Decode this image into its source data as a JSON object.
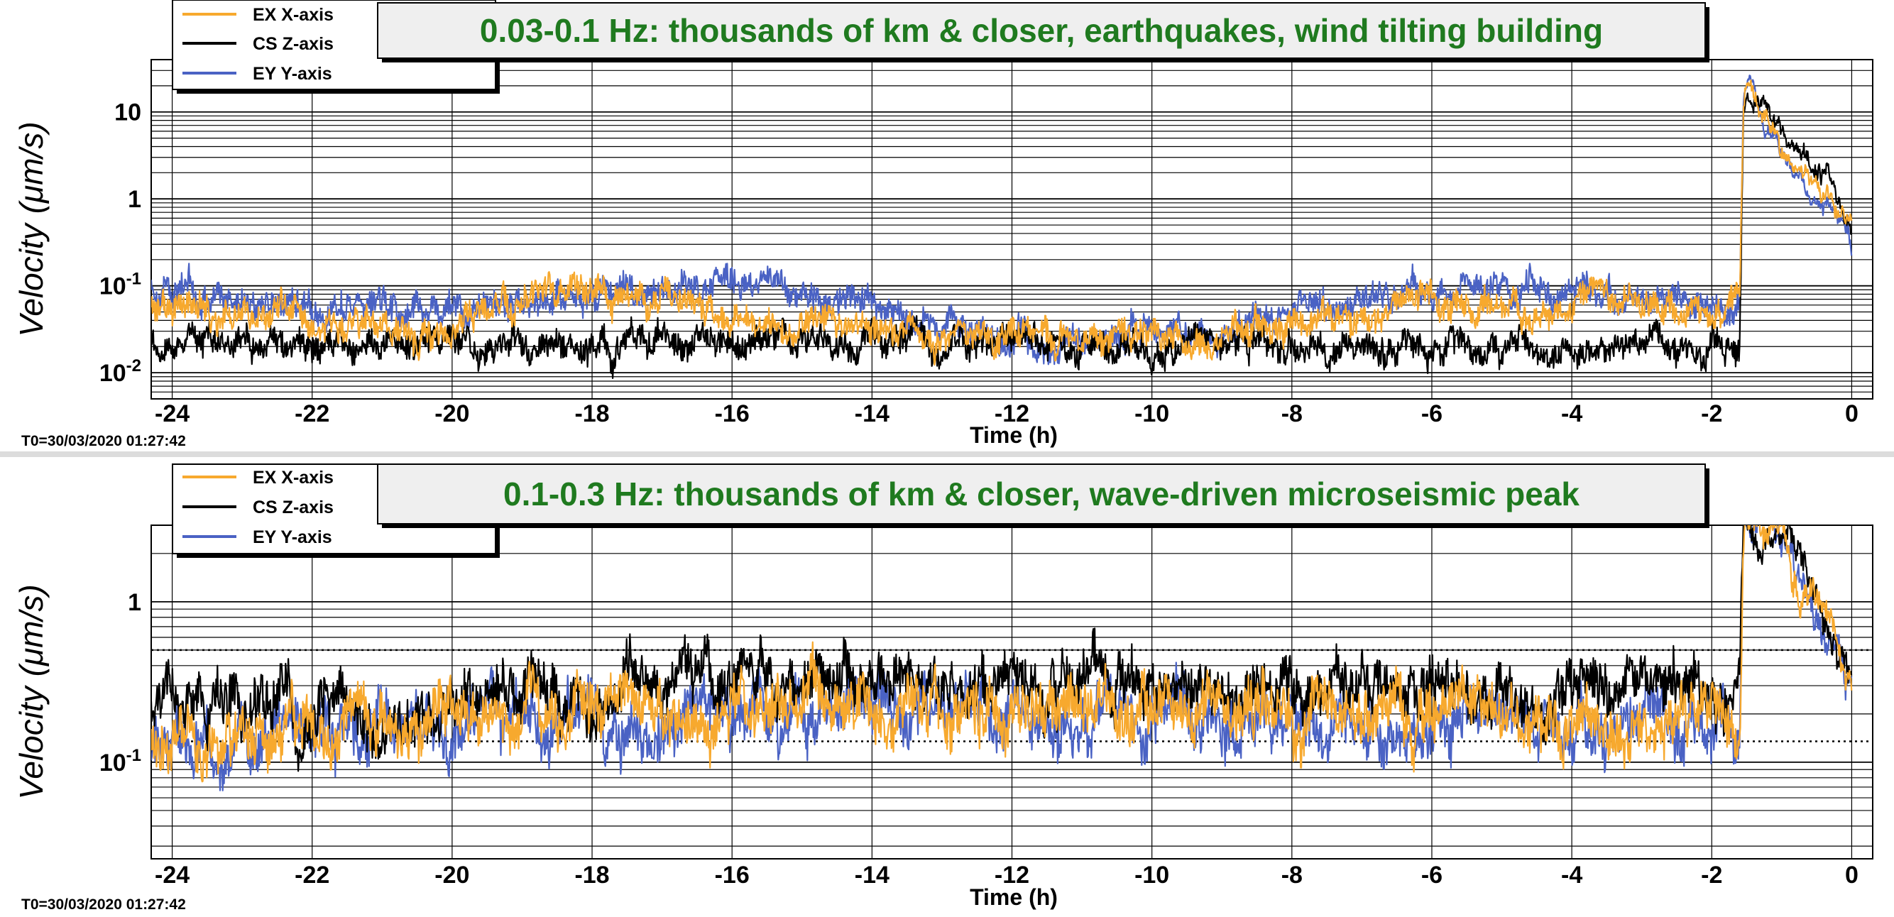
{
  "panels": [
    {
      "title": "0.03-0.1 Hz: thousands of km & closer, earthquakes, wind tilting building",
      "ylabel": "Velocity",
      "ylabel_unit": "(μm/s)",
      "xlabel": "Time (h)",
      "footer": "T0=30/03/2020 01:27:42",
      "legend": [
        "EX X-axis",
        "CS Z-axis",
        "EY Y-axis"
      ]
    },
    {
      "title": "0.1-0.3 Hz: thousands of km & closer, wave-driven microseismic peak",
      "ylabel": "Velocity",
      "ylabel_unit": "(μm/s)",
      "xlabel": "Time (h)",
      "footer": "T0=30/03/2020 01:27:42",
      "legend": [
        "EX X-axis",
        "CS Z-axis",
        "EY Y-axis"
      ]
    }
  ],
  "colors": {
    "title": "#1f7a1f",
    "EX": "#f7a92e",
    "CS": "#000000",
    "EY": "#4a62c4",
    "title_box": "#efefef"
  },
  "chart_data": [
    {
      "type": "line",
      "title": "0.03-0.1 Hz: thousands of km & closer, earthquakes, wind tilting building",
      "xlabel": "Time (h)",
      "ylabel": "Velocity (μm/s)",
      "yscale": "log",
      "xlim": [
        -24.3,
        0.3
      ],
      "ylim": [
        0.005,
        40
      ],
      "x_ticks": [
        "-24",
        "-22",
        "-20",
        "-18",
        "-16",
        "-14",
        "-12",
        "-10",
        "-8",
        "-6",
        "-4",
        "-2",
        "0"
      ],
      "y_ticks": [
        "10^-2",
        "10^-1",
        "1",
        "10"
      ],
      "grid": true,
      "legend_position": "top-left",
      "series": [
        {
          "name": "EX X-axis",
          "x": [
            -24.3,
            -22,
            -20,
            -18,
            -16,
            -14,
            -12,
            -10,
            -8,
            -6,
            -4,
            -2,
            -1.6,
            -1.55,
            -1.5,
            -1,
            -0.5,
            0
          ],
          "y": [
            0.06,
            0.035,
            0.035,
            0.1,
            0.04,
            0.03,
            0.025,
            0.025,
            0.035,
            0.06,
            0.06,
            0.05,
            0.05,
            10,
            25,
            4,
            1.5,
            0.5
          ]
        },
        {
          "name": "CS Z-axis",
          "x": [
            -24.3,
            -22,
            -20,
            -18,
            -16,
            -14,
            -12,
            -10,
            -8,
            -6,
            -4,
            -2,
            -1.6,
            -1.55,
            -1.5,
            -1,
            -0.5,
            0
          ],
          "y": [
            0.02,
            0.02,
            0.02,
            0.02,
            0.02,
            0.025,
            0.02,
            0.02,
            0.02,
            0.02,
            0.02,
            0.02,
            0.02,
            10,
            22,
            5,
            2,
            0.6
          ]
        },
        {
          "name": "EY Y-axis",
          "x": [
            -24.3,
            -22,
            -20,
            -18,
            -16,
            -14,
            -12,
            -10,
            -8,
            -6,
            -4,
            -2,
            -1.6,
            -1.55,
            -1.5,
            -1,
            -0.5,
            0
          ],
          "y": [
            0.1,
            0.06,
            0.05,
            0.08,
            0.1,
            0.06,
            0.025,
            0.03,
            0.05,
            0.08,
            0.1,
            0.05,
            0.04,
            8,
            20,
            3,
            1,
            0.3
          ]
        }
      ]
    },
    {
      "type": "line",
      "title": "0.1-0.3 Hz: thousands of km & closer, wave-driven microseismic peak",
      "xlabel": "Time (h)",
      "ylabel": "Velocity (μm/s)",
      "yscale": "log",
      "xlim": [
        -24.3,
        0.3
      ],
      "ylim": [
        0.025,
        3
      ],
      "x_ticks": [
        "-24",
        "-22",
        "-20",
        "-18",
        "-16",
        "-14",
        "-12",
        "-10",
        "-8",
        "-6",
        "-4",
        "-2",
        "0"
      ],
      "y_ticks": [
        "10^-1",
        "1"
      ],
      "grid": true,
      "reference_lines": [
        0.5,
        0.135
      ],
      "legend_position": "top-left",
      "series": [
        {
          "name": "EX X-axis",
          "x": [
            -24.3,
            -22,
            -20,
            -18,
            -16,
            -14,
            -12,
            -10,
            -8,
            -6,
            -4,
            -2,
            -1.6,
            -1.55,
            -1.5,
            -1,
            -0.5,
            0
          ],
          "y": [
            0.15,
            0.15,
            0.17,
            0.2,
            0.22,
            0.22,
            0.2,
            0.2,
            0.2,
            0.2,
            0.2,
            0.2,
            0.2,
            3,
            3,
            2.5,
            0.7,
            0.3
          ]
        },
        {
          "name": "CS Z-axis",
          "x": [
            -24.3,
            -22,
            -20,
            -18,
            -16,
            -14,
            -12,
            -10,
            -8,
            -6,
            -4,
            -2,
            -1.6,
            -1.55,
            -1.5,
            -1,
            -0.5,
            0
          ],
          "y": [
            0.2,
            0.22,
            0.25,
            0.28,
            0.3,
            0.32,
            0.3,
            0.3,
            0.3,
            0.28,
            0.28,
            0.27,
            0.27,
            3,
            3,
            2.8,
            0.9,
            0.4
          ]
        },
        {
          "name": "EY Y-axis",
          "x": [
            -24.3,
            -22,
            -20,
            -18,
            -16,
            -14,
            -12,
            -10,
            -8,
            -6,
            -4,
            -2,
            -1.6,
            -1.55,
            -1.5,
            -1,
            -0.5,
            0
          ],
          "y": [
            0.14,
            0.15,
            0.16,
            0.19,
            0.2,
            0.2,
            0.19,
            0.19,
            0.18,
            0.18,
            0.18,
            0.18,
            0.18,
            3,
            3,
            2.3,
            0.6,
            0.25
          ]
        }
      ]
    }
  ]
}
